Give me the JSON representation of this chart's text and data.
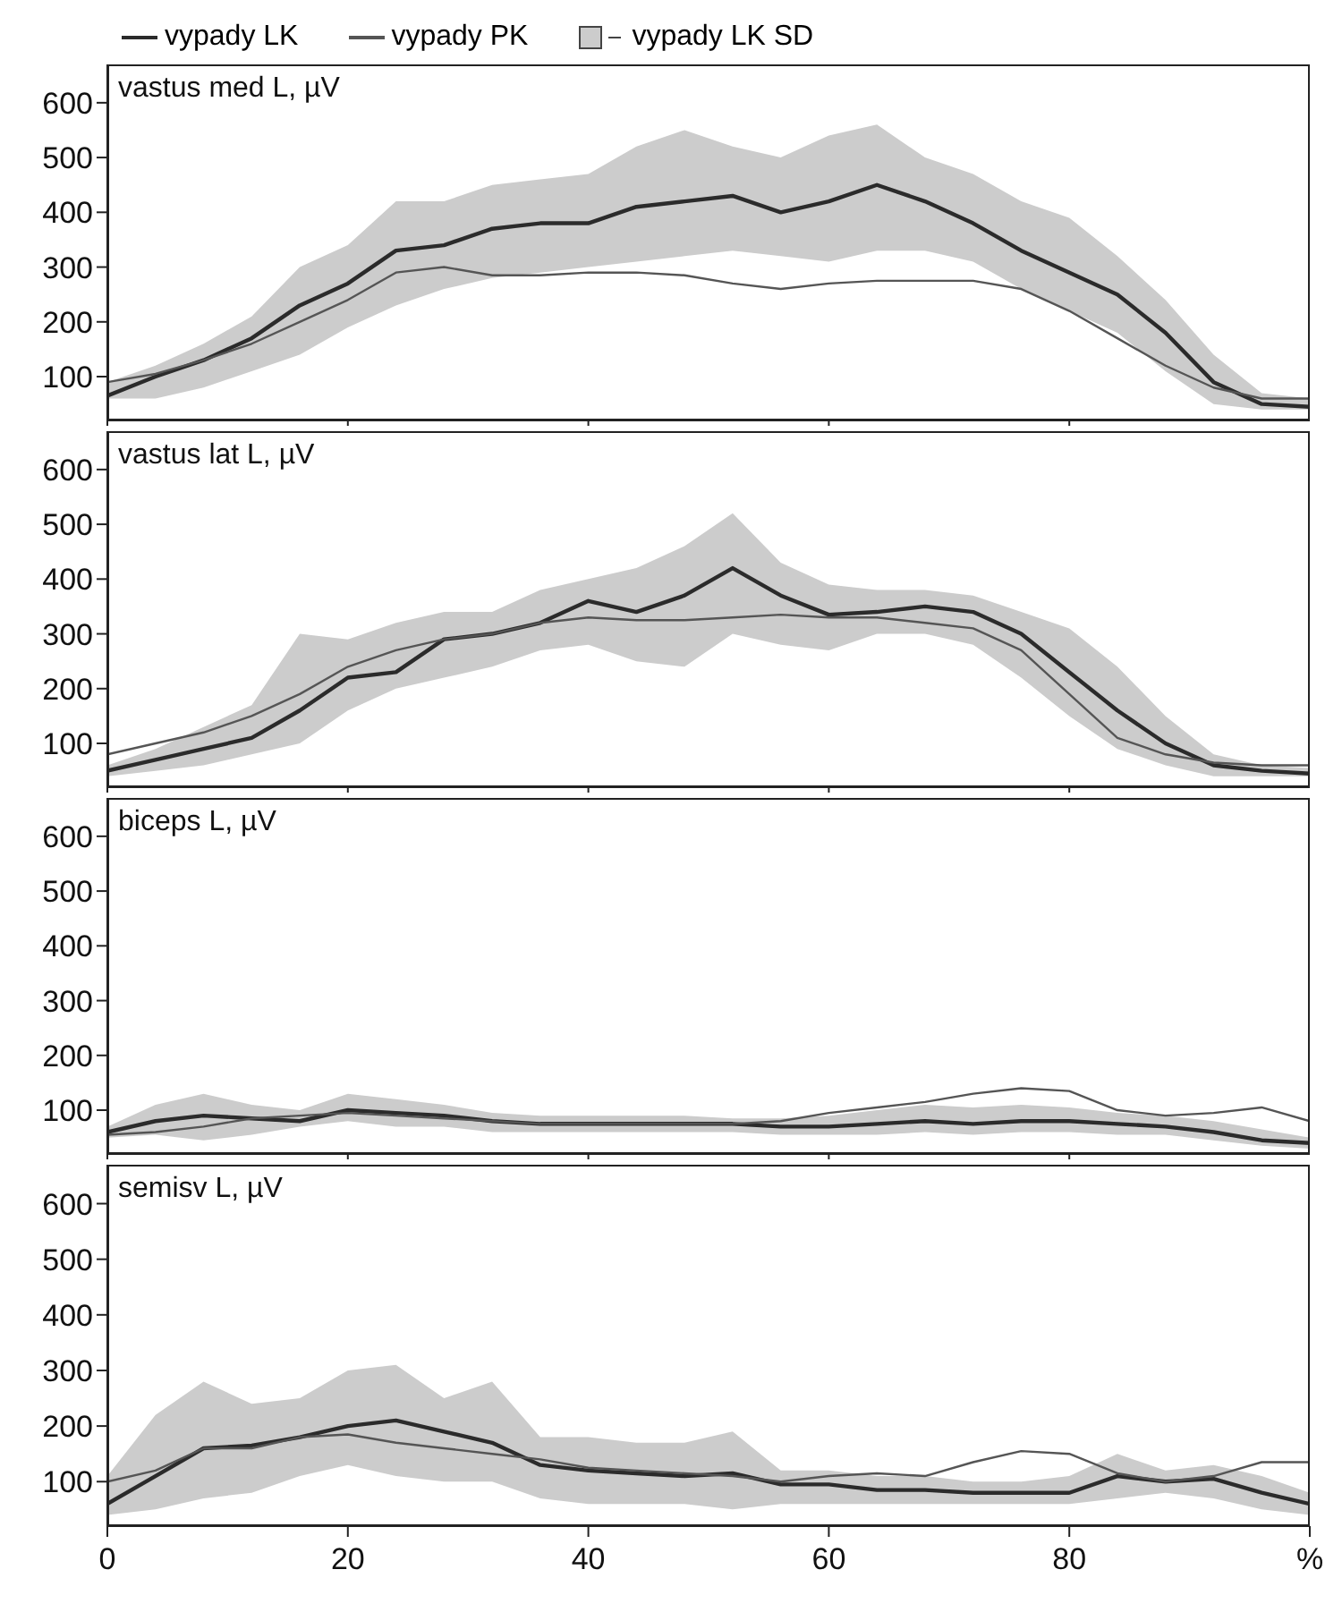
{
  "chart_data": [
    {
      "type": "line",
      "title": "vastus med L, µV",
      "legend": "top",
      "annotations": [
        "vypady LK SD"
      ],
      "tick_labels": "y",
      "x": [
        0,
        4,
        8,
        12,
        16,
        20,
        24,
        28,
        32,
        36,
        40,
        44,
        48,
        52,
        56,
        60,
        64,
        68,
        72,
        76,
        80,
        84,
        88,
        92,
        96,
        100
      ],
      "xlim": [
        0,
        100
      ],
      "xticks": [
        0,
        20,
        40,
        60,
        80
      ],
      "ylim": [
        20,
        670
      ],
      "yticks": [
        100,
        200,
        300,
        400,
        500,
        600
      ],
      "series": [
        {
          "name": "vypady LK",
          "color": "#2b2b2b",
          "values": [
            65,
            100,
            130,
            170,
            230,
            270,
            330,
            340,
            370,
            380,
            380,
            410,
            420,
            430,
            400,
            420,
            450,
            420,
            380,
            330,
            290,
            250,
            180,
            90,
            50,
            45
          ],
          "lower": [
            60,
            60,
            80,
            110,
            140,
            190,
            230,
            260,
            280,
            290,
            300,
            310,
            320,
            330,
            320,
            310,
            330,
            330,
            310,
            260,
            220,
            180,
            110,
            50,
            40,
            40
          ],
          "upper": [
            90,
            120,
            160,
            210,
            300,
            340,
            420,
            420,
            450,
            460,
            470,
            520,
            550,
            520,
            500,
            540,
            560,
            500,
            470,
            420,
            390,
            320,
            240,
            140,
            70,
            60
          ]
        },
        {
          "name": "vypady PK",
          "color": "#555555",
          "values": [
            90,
            105,
            130,
            160,
            200,
            240,
            290,
            300,
            285,
            285,
            290,
            290,
            285,
            270,
            260,
            270,
            275,
            275,
            275,
            260,
            220,
            170,
            120,
            80,
            60,
            60
          ]
        }
      ]
    },
    {
      "type": "line",
      "title": "vastus lat L, µV",
      "tick_labels": "y",
      "x": [
        0,
        4,
        8,
        12,
        16,
        20,
        24,
        28,
        32,
        36,
        40,
        44,
        48,
        52,
        56,
        60,
        64,
        68,
        72,
        76,
        80,
        84,
        88,
        92,
        96,
        100
      ],
      "xlim": [
        0,
        100
      ],
      "xticks": [
        0,
        20,
        40,
        60,
        80
      ],
      "ylim": [
        20,
        670
      ],
      "yticks": [
        100,
        200,
        300,
        400,
        500,
        600
      ],
      "series": [
        {
          "color": "#2b2b2b",
          "values": [
            50,
            70,
            90,
            110,
            160,
            220,
            230,
            290,
            300,
            320,
            360,
            340,
            370,
            420,
            370,
            335,
            340,
            350,
            340,
            300,
            230,
            160,
            100,
            60,
            50,
            45
          ],
          "lower": [
            40,
            50,
            60,
            80,
            100,
            160,
            200,
            220,
            240,
            270,
            280,
            250,
            240,
            300,
            280,
            270,
            300,
            300,
            280,
            220,
            150,
            90,
            60,
            40,
            40,
            40
          ],
          "upper": [
            60,
            90,
            130,
            170,
            300,
            290,
            320,
            340,
            340,
            380,
            400,
            420,
            460,
            520,
            430,
            390,
            380,
            380,
            370,
            340,
            310,
            240,
            150,
            80,
            60,
            55
          ]
        },
        {
          "color": "#555555",
          "values": [
            80,
            100,
            120,
            150,
            190,
            240,
            270,
            290,
            300,
            320,
            330,
            325,
            325,
            330,
            335,
            330,
            330,
            320,
            310,
            270,
            190,
            110,
            80,
            65,
            60,
            60
          ]
        }
      ]
    },
    {
      "type": "line",
      "title": "biceps L, µV",
      "tick_labels": "y",
      "x": [
        0,
        4,
        8,
        12,
        16,
        20,
        24,
        28,
        32,
        36,
        40,
        44,
        48,
        52,
        56,
        60,
        64,
        68,
        72,
        76,
        80,
        84,
        88,
        92,
        96,
        100
      ],
      "xlim": [
        0,
        100
      ],
      "xticks": [
        0,
        20,
        40,
        60,
        80
      ],
      "ylim": [
        20,
        670
      ],
      "yticks": [
        100,
        200,
        300,
        400,
        500,
        600
      ],
      "series": [
        {
          "color": "#2b2b2b",
          "values": [
            60,
            80,
            90,
            85,
            80,
            100,
            95,
            90,
            80,
            75,
            75,
            75,
            75,
            75,
            70,
            70,
            75,
            80,
            75,
            80,
            80,
            75,
            70,
            60,
            45,
            40
          ],
          "lower": [
            50,
            55,
            45,
            55,
            70,
            80,
            70,
            70,
            60,
            60,
            60,
            60,
            60,
            60,
            55,
            55,
            55,
            60,
            55,
            60,
            60,
            55,
            55,
            45,
            35,
            30
          ],
          "upper": [
            70,
            110,
            130,
            110,
            100,
            130,
            120,
            110,
            95,
            90,
            90,
            90,
            90,
            85,
            85,
            90,
            100,
            110,
            105,
            110,
            105,
            95,
            90,
            80,
            65,
            50
          ]
        },
        {
          "color": "#555555",
          "values": [
            55,
            60,
            70,
            85,
            90,
            95,
            90,
            85,
            80,
            75,
            75,
            75,
            75,
            75,
            80,
            95,
            105,
            115,
            130,
            140,
            135,
            100,
            90,
            95,
            105,
            80
          ]
        }
      ]
    },
    {
      "type": "line",
      "title": "semisv L, µV",
      "x": [
        0,
        4,
        8,
        12,
        16,
        20,
        24,
        28,
        32,
        36,
        40,
        44,
        48,
        52,
        56,
        60,
        64,
        68,
        72,
        76,
        80,
        84,
        88,
        92,
        96,
        100
      ],
      "xlim": [
        0,
        100
      ],
      "xticks": [
        0,
        20,
        40,
        60,
        80,
        {
          "value": 100,
          "label": "%"
        }
      ],
      "ylim": [
        20,
        670
      ],
      "yticks": [
        100,
        200,
        300,
        400,
        500,
        600
      ],
      "series": [
        {
          "color": "#2b2b2b",
          "values": [
            60,
            110,
            160,
            165,
            180,
            200,
            210,
            190,
            170,
            130,
            120,
            115,
            110,
            115,
            95,
            95,
            85,
            85,
            80,
            80,
            80,
            110,
            100,
            105,
            80,
            60
          ],
          "lower": [
            40,
            50,
            70,
            80,
            110,
            130,
            110,
            100,
            100,
            70,
            60,
            60,
            60,
            50,
            60,
            60,
            60,
            60,
            60,
            60,
            60,
            70,
            80,
            70,
            50,
            40
          ],
          "upper": [
            110,
            220,
            280,
            240,
            250,
            300,
            310,
            250,
            280,
            180,
            180,
            170,
            170,
            190,
            120,
            120,
            110,
            110,
            100,
            100,
            110,
            150,
            120,
            130,
            110,
            80
          ]
        },
        {
          "color": "#555555",
          "values": [
            100,
            120,
            160,
            160,
            180,
            185,
            170,
            160,
            150,
            140,
            125,
            120,
            115,
            110,
            100,
            110,
            115,
            110,
            135,
            155,
            150,
            115,
            100,
            110,
            135,
            135
          ]
        }
      ]
    }
  ]
}
